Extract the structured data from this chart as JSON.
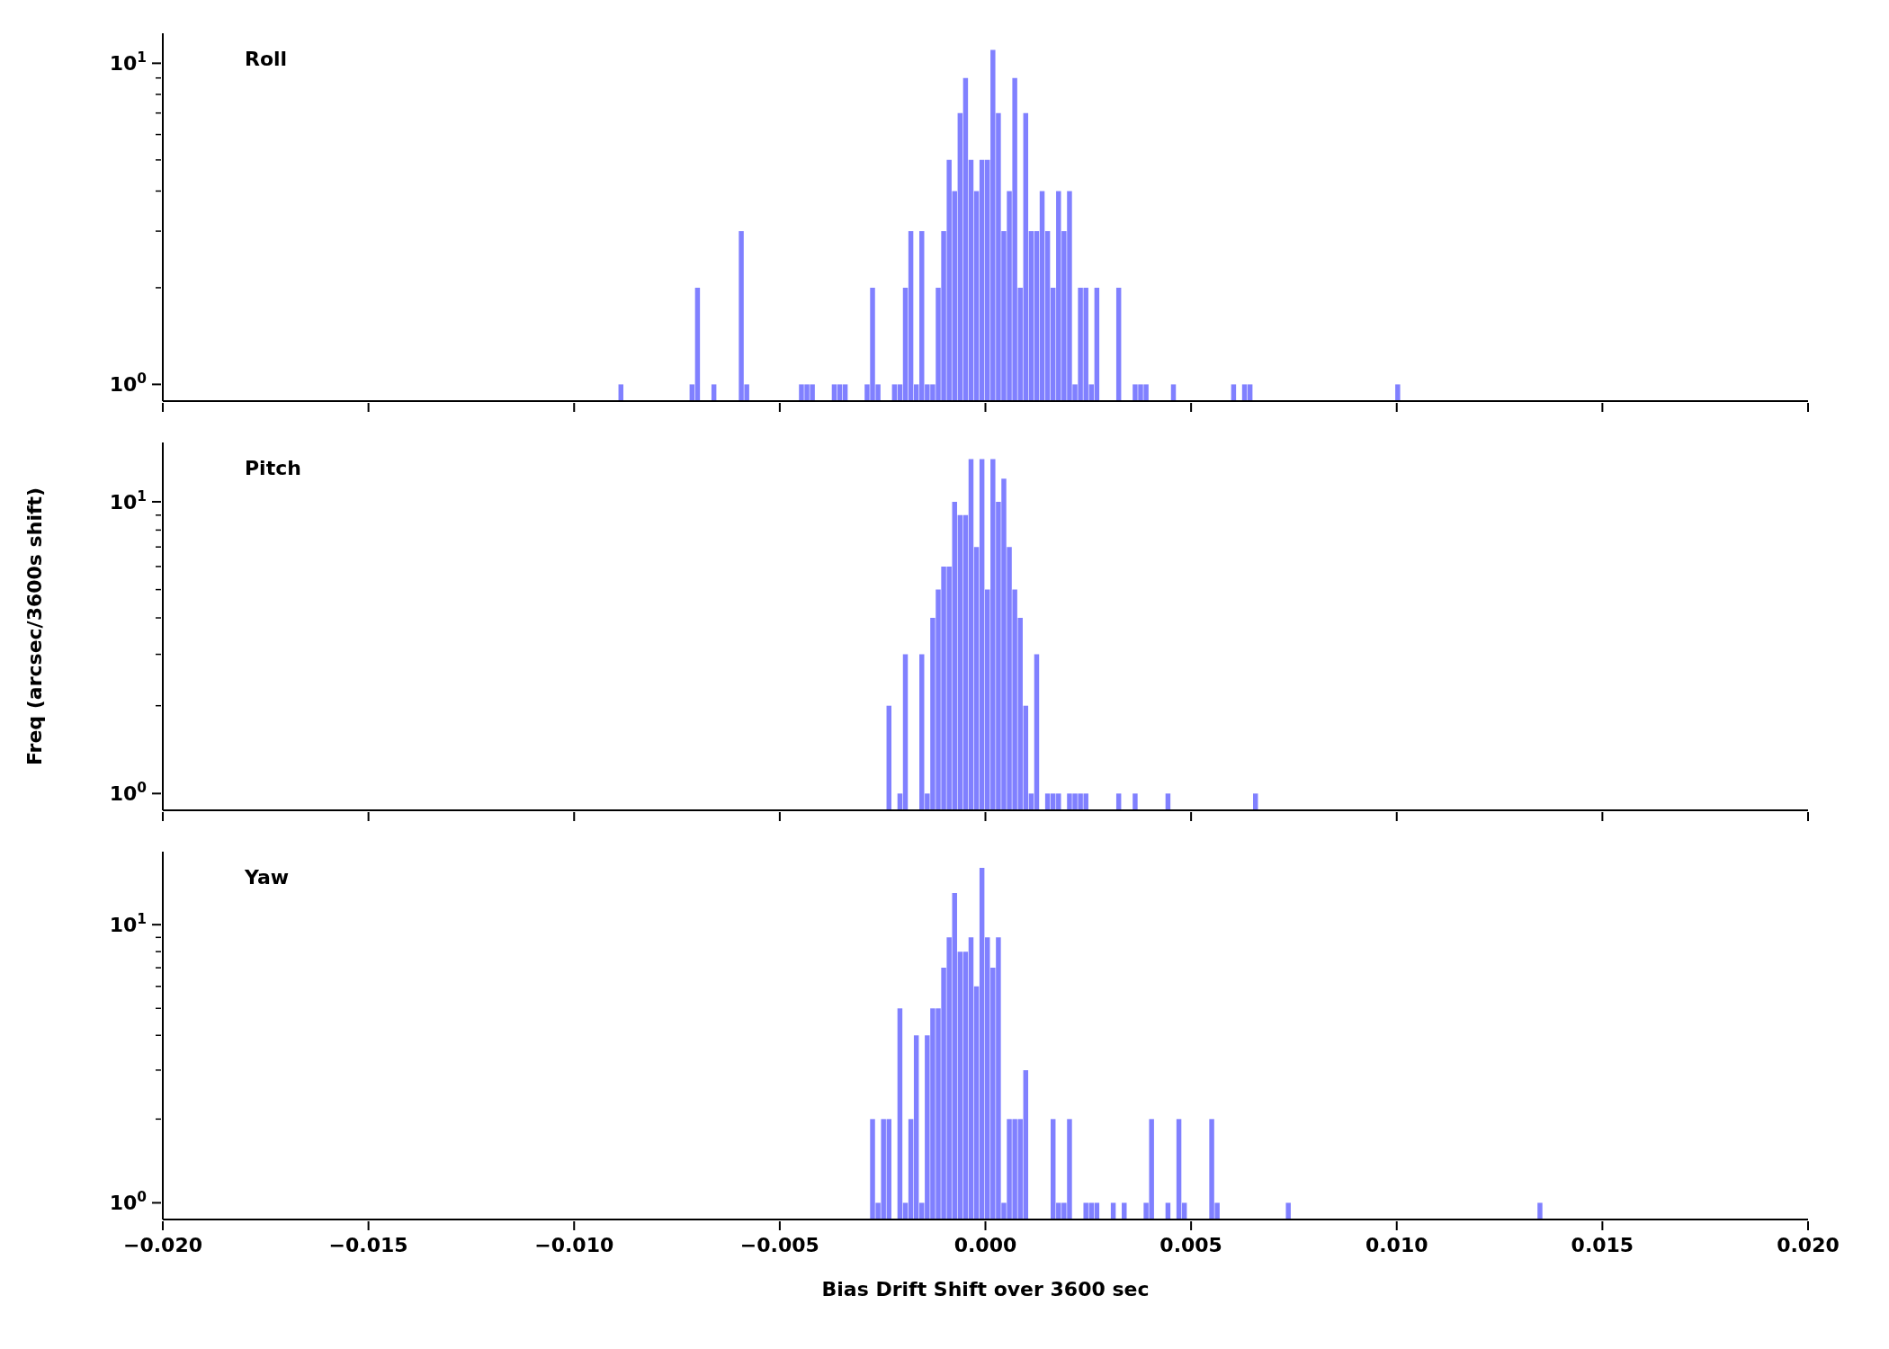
{
  "chart_data": [
    {
      "type": "histogram",
      "title": "Roll",
      "color": "#8080ff",
      "log": true,
      "tick_labels": "y",
      "bins": [
        -0.008922,
        -0.008789,
        -0.008656,
        -0.008523,
        -0.00839,
        -0.008257,
        -0.008124,
        -0.007991,
        -0.007858,
        -0.007725,
        -0.007592,
        -0.007459,
        -0.007326,
        -0.007193,
        -0.00706,
        -0.006927,
        -0.006794,
        -0.006661,
        -0.006528,
        -0.006395,
        -0.006262,
        -0.006129,
        -0.005996,
        -0.005863,
        -0.00573,
        -0.005597,
        -0.005464,
        -0.005331,
        -0.005198,
        -0.005065,
        -0.004932,
        -0.004799,
        -0.004666,
        -0.004533,
        -0.0044,
        -0.004267,
        -0.004134,
        -0.004001,
        -0.003868,
        -0.003735,
        -0.003602,
        -0.003469,
        -0.003336,
        -0.003203,
        -0.00307,
        -0.002937,
        -0.002804,
        -0.002671,
        -0.002538,
        -0.002405,
        -0.002272,
        -0.002139,
        -0.002006,
        -0.001873,
        -0.00174,
        -0.001607,
        -0.001474,
        -0.001341,
        -0.001208,
        -0.001075,
        -0.000942,
        -0.000809,
        -0.000676,
        -0.000543,
        -0.00041,
        -0.000277,
        -0.000144,
        -1.1e-05,
        0.000122,
        0.000255,
        0.000388,
        0.000521,
        0.000654,
        0.000787,
        0.00092,
        0.001053,
        0.001186,
        0.001319,
        0.001452,
        0.001585,
        0.001718,
        0.001851,
        0.001984,
        0.002117,
        0.00225,
        0.002383,
        0.002516,
        0.002649,
        0.002782,
        0.002915,
        0.003048,
        0.003181,
        0.003314,
        0.003447,
        0.00358,
        0.003713,
        0.003846,
        0.003979,
        0.004112,
        0.004245,
        0.004378,
        0.004511,
        0.004644,
        0.004777,
        0.00491,
        0.005043,
        0.005176,
        0.005309,
        0.005442,
        0.005575,
        0.005708,
        0.005841,
        0.005974,
        0.006107,
        0.00624,
        0.006373,
        0.006506,
        0.006639,
        0.006772,
        0.006905,
        0.007038,
        0.007171,
        0.007304,
        0.007437,
        0.00757,
        0.007703,
        0.007836,
        0.007969,
        0.008102,
        0.008235,
        0.008368,
        0.008501,
        0.008634,
        0.008767,
        0.0089,
        0.009033,
        0.009166,
        0.009299,
        0.009432,
        0.009565,
        0.009698,
        0.009831,
        0.009964,
        0.010097
      ],
      "values": [
        1,
        null,
        null,
        null,
        null,
        null,
        null,
        null,
        null,
        null,
        null,
        null,
        null,
        1,
        2,
        null,
        null,
        1,
        null,
        null,
        null,
        null,
        3,
        1,
        null,
        null,
        null,
        null,
        null,
        null,
        null,
        null,
        null,
        1,
        1,
        1,
        null,
        null,
        null,
        1,
        1,
        1,
        null,
        null,
        null,
        1,
        2,
        1,
        null,
        null,
        1,
        1,
        2,
        3,
        1,
        3,
        1,
        1,
        2,
        3,
        5,
        4,
        7,
        9,
        5,
        4,
        5,
        5,
        11,
        7,
        3,
        4,
        9,
        2,
        7,
        3,
        3,
        4,
        3,
        2,
        4,
        3,
        4,
        1,
        2,
        2,
        1,
        2,
        null,
        null,
        null,
        2,
        null,
        null,
        1,
        1,
        1,
        null,
        null,
        null,
        null,
        1,
        null,
        null,
        null,
        null,
        null,
        null,
        null,
        null,
        null,
        null,
        1,
        null,
        1,
        1,
        null,
        null,
        null,
        null,
        null,
        null,
        null,
        null,
        null,
        null,
        null,
        null,
        null,
        null,
        null,
        null,
        null,
        null,
        null,
        null,
        null,
        null,
        null,
        null,
        null,
        null,
        1
      ],
      "xlim": [
        -0.02,
        0.02
      ],
      "xticks": [
        {
          "value": -0.02,
          "label": null
        },
        {
          "value": -0.015,
          "label": null
        },
        {
          "value": -0.01,
          "label": null
        },
        {
          "value": -0.005,
          "label": null
        },
        {
          "value": 0,
          "label": null
        },
        {
          "value": 0.005,
          "label": null
        },
        {
          "value": 0.01,
          "label": null
        },
        {
          "value": 0.015,
          "label": null
        },
        {
          "value": 0.02,
          "label": null
        }
      ],
      "ylim": [
        0.887,
        12.4
      ],
      "yticks": [
        {
          "value": 1,
          "label": "10$^{0}$"
        },
        {
          "value": 2,
          "label": null
        },
        {
          "value": 3,
          "label": null
        },
        {
          "value": 4,
          "label": null
        },
        {
          "value": 5,
          "label": null
        },
        {
          "value": 6,
          "label": null
        },
        {
          "value": 7,
          "label": null
        },
        {
          "value": 8,
          "label": null
        },
        {
          "value": 9,
          "label": null
        },
        {
          "value": 10,
          "label": "10$^{1}$"
        }
      ]
    },
    {
      "type": "histogram",
      "title": "Pitch",
      "ylabel": "Freq (arcsec/3600s shift)",
      "color": "#8080ff",
      "log": true,
      "tick_labels": "y",
      "bins": [
        -0.002405,
        -0.002272,
        -0.002139,
        -0.002006,
        -0.001873,
        -0.00174,
        -0.001607,
        -0.001474,
        -0.001341,
        -0.001208,
        -0.001075,
        -0.000942,
        -0.000809,
        -0.000676,
        -0.000543,
        -0.00041,
        -0.000277,
        -0.000144,
        -1.1e-05,
        0.000122,
        0.000255,
        0.000388,
        0.000521,
        0.000654,
        0.000787,
        0.00092,
        0.001053,
        0.001186,
        0.001319,
        0.001452,
        0.001585,
        0.001718,
        0.001851,
        0.001984,
        0.002117,
        0.00225,
        0.002383,
        0.002516,
        0.002649,
        0.002782,
        0.002915,
        0.003048,
        0.003181,
        0.003314,
        0.003447,
        0.00358,
        0.003713,
        0.003846,
        0.003979,
        0.004112,
        0.004245,
        0.004378,
        0.004511,
        0.004644,
        0.004777,
        0.00491,
        0.005043,
        0.005176,
        0.005309,
        0.005442,
        0.005575,
        0.005708,
        0.005841,
        0.005974,
        0.006107,
        0.00624,
        0.006373,
        0.006506,
        0.006639
      ],
      "values": [
        2,
        null,
        1,
        3,
        null,
        null,
        3,
        1,
        4,
        5,
        6,
        6,
        10,
        9,
        9,
        14,
        7,
        14,
        5,
        14,
        10,
        12,
        7,
        5,
        4,
        2,
        1,
        3,
        null,
        1,
        1,
        1,
        null,
        1,
        1,
        1,
        1,
        null,
        null,
        null,
        null,
        null,
        1,
        null,
        null,
        1,
        null,
        null,
        null,
        null,
        null,
        1,
        null,
        null,
        null,
        null,
        null,
        null,
        null,
        null,
        null,
        null,
        null,
        null,
        null,
        null,
        null,
        1
      ],
      "xlim": [
        -0.02,
        0.02
      ],
      "xticks": [
        {
          "value": -0.02,
          "label": null
        },
        {
          "value": -0.015,
          "label": null
        },
        {
          "value": -0.01,
          "label": null
        },
        {
          "value": -0.005,
          "label": null
        },
        {
          "value": 0,
          "label": null
        },
        {
          "value": 0.005,
          "label": null
        },
        {
          "value": 0.01,
          "label": null
        },
        {
          "value": 0.015,
          "label": null
        },
        {
          "value": 0.02,
          "label": null
        }
      ],
      "ylim": [
        0.876,
        15.97
      ],
      "yticks": [
        {
          "value": 1,
          "label": "10$^{0}$"
        },
        {
          "value": 2,
          "label": null
        },
        {
          "value": 3,
          "label": null
        },
        {
          "value": 4,
          "label": null
        },
        {
          "value": 5,
          "label": null
        },
        {
          "value": 6,
          "label": null
        },
        {
          "value": 7,
          "label": null
        },
        {
          "value": 8,
          "label": null
        },
        {
          "value": 9,
          "label": null
        },
        {
          "value": 10,
          "label": "10$^{1}$"
        }
      ]
    },
    {
      "type": "histogram",
      "title": "Yaw",
      "xlabel": "Bias Drift Shift over 3600 sec",
      "color": "#8080ff",
      "log": true,
      "bins": [
        -0.002804,
        -0.002671,
        -0.002538,
        -0.002405,
        -0.002272,
        -0.002139,
        -0.002006,
        -0.001873,
        -0.00174,
        -0.001607,
        -0.001474,
        -0.001341,
        -0.001208,
        -0.001075,
        -0.000942,
        -0.000809,
        -0.000676,
        -0.000543,
        -0.00041,
        -0.000277,
        -0.000144,
        -1.1e-05,
        0.000122,
        0.000255,
        0.000388,
        0.000521,
        0.000654,
        0.000787,
        0.00092,
        0.001053,
        0.001186,
        0.001319,
        0.001452,
        0.001585,
        0.001718,
        0.001851,
        0.001984,
        0.002117,
        0.00225,
        0.002383,
        0.002516,
        0.002649,
        0.002782,
        0.002915,
        0.003048,
        0.003181,
        0.003314,
        0.003447,
        0.00358,
        0.003713,
        0.003846,
        0.003979,
        0.004112,
        0.004245,
        0.004378,
        0.004511,
        0.004644,
        0.004777,
        0.00491,
        0.005043,
        0.005176,
        0.005309,
        0.005442,
        0.005575,
        0.005708,
        0.005841,
        0.005974,
        0.006107,
        0.00624,
        0.006373,
        0.006506,
        0.006639,
        0.006772,
        0.006905,
        0.007038,
        0.007171,
        0.007304,
        0.007437,
        0.00757,
        0.007703,
        0.007836,
        0.007969,
        0.008102,
        0.008235,
        0.008368,
        0.008501,
        0.008634,
        0.008767,
        0.0089,
        0.009033,
        0.009166,
        0.009299,
        0.009432,
        0.009565,
        0.009698,
        0.009831,
        0.009964,
        0.010097,
        0.01023,
        0.010363,
        0.010496,
        0.010629,
        0.010762,
        0.010895,
        0.011028,
        0.011161,
        0.011294,
        0.011427,
        0.01156,
        0.011693,
        0.011826,
        0.011959,
        0.012092,
        0.012225,
        0.012358,
        0.012491,
        0.012624,
        0.012757,
        0.01289,
        0.013023,
        0.013156,
        0.013289,
        0.013422,
        0.013555
      ],
      "values": [
        2,
        1,
        2,
        2,
        null,
        5,
        1,
        2,
        4,
        1,
        4,
        5,
        5,
        7,
        9,
        13,
        8,
        8,
        9,
        6,
        16,
        9,
        7,
        9,
        1,
        2,
        2,
        2,
        3,
        null,
        null,
        null,
        null,
        2,
        1,
        1,
        2,
        null,
        null,
        1,
        1,
        1,
        null,
        null,
        1,
        null,
        1,
        null,
        null,
        null,
        1,
        2,
        null,
        null,
        1,
        null,
        2,
        1,
        null,
        null,
        null,
        null,
        2,
        1,
        null,
        null,
        null,
        null,
        null,
        null,
        null,
        null,
        null,
        null,
        null,
        null,
        1,
        null,
        null,
        null,
        null,
        null,
        null,
        null,
        null,
        null,
        null,
        null,
        null,
        null,
        null,
        null,
        null,
        null,
        null,
        null,
        null,
        null,
        null,
        null,
        null,
        null,
        null,
        null,
        null,
        null,
        null,
        null,
        null,
        null,
        null,
        null,
        null,
        null,
        null,
        null,
        null,
        null,
        null,
        null,
        null,
        null,
        1
      ],
      "xlim": [
        -0.02,
        0.02
      ],
      "xticks": [
        {
          "value": -0.02,
          "label": "−0.020"
        },
        {
          "value": -0.015,
          "label": "−0.015"
        },
        {
          "value": -0.01,
          "label": "−0.010"
        },
        {
          "value": -0.005,
          "label": "−0.005"
        },
        {
          "value": 0,
          "label": "0.000"
        },
        {
          "value": 0.005,
          "label": "0.005"
        },
        {
          "value": 0.01,
          "label": "0.010"
        },
        {
          "value": 0.015,
          "label": "0.015"
        },
        {
          "value": 0.02,
          "label": "0.020"
        }
      ],
      "ylim": [
        0.871,
        18.3
      ],
      "yticks": [
        {
          "value": 1,
          "label": "10$^{0}$"
        },
        {
          "value": 2,
          "label": null
        },
        {
          "value": 3,
          "label": null
        },
        {
          "value": 4,
          "label": null
        },
        {
          "value": 5,
          "label": null
        },
        {
          "value": 6,
          "label": null
        },
        {
          "value": 7,
          "label": null
        },
        {
          "value": 8,
          "label": null
        },
        {
          "value": 9,
          "label": null
        },
        {
          "value": 10,
          "label": "10$^{1}$"
        }
      ]
    }
  ]
}
